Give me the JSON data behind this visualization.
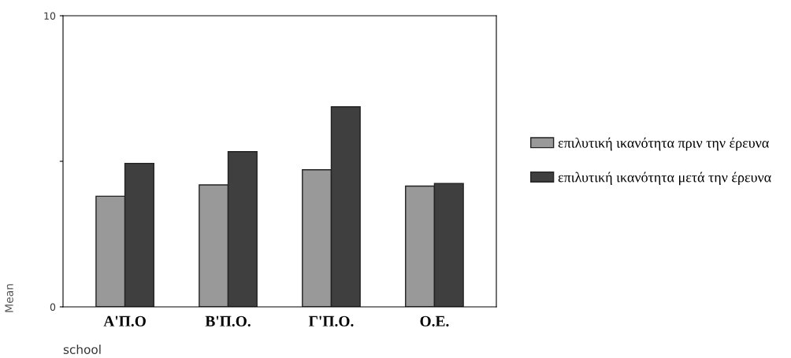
{
  "chart_data": {
    "type": "bar",
    "categories": [
      "A'Π.Ο",
      "B'Π.Ο.",
      "Γ'Π.Ο.",
      "Ο.Ε."
    ],
    "series": [
      {
        "name": "επιλυτική ικανότητα πριν την έρευνα",
        "color": "#999999",
        "values": [
          3.8,
          4.19,
          4.71,
          4.15
        ]
      },
      {
        "name": "επιλυτική ικανότητα μετά την έρευνα",
        "color": "#3f3f3f",
        "values": [
          4.93,
          5.33,
          6.87,
          4.24
        ]
      }
    ],
    "ylim": [
      0,
      10
    ],
    "yticks": [
      0,
      {
        "value": 5,
        "label": null
      },
      10
    ],
    "xlabel": "school",
    "ylabel": "Mean",
    "legend": "right",
    "grid": false
  }
}
